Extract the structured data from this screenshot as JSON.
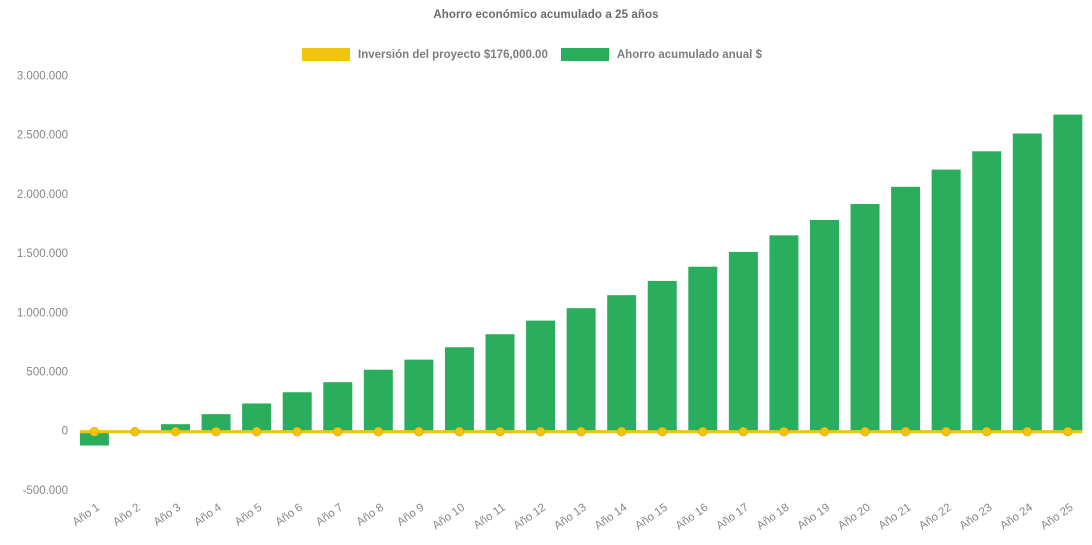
{
  "title": "Ahorro económico acumulado a 25 años",
  "legend": {
    "items": [
      {
        "label": "Inversión del proyecto $176,000.00",
        "series": "investment-line",
        "color": "#F1C40F"
      },
      {
        "label": "Ahorro acumulado anual $",
        "series": "savings-bars",
        "color": "#2BAD5E"
      }
    ]
  },
  "chart_data": {
    "type": "bar",
    "title": "Ahorro económico acumulado a 25 años",
    "categories": [
      "Año 1",
      "Año 2",
      "Año 3",
      "Año 4",
      "Año 5",
      "Año 6",
      "Año 7",
      "Año 8",
      "Año 9",
      "Año 10",
      "Año 11",
      "Año 12",
      "Año 13",
      "Año 14",
      "Año 15",
      "Año 16",
      "Año 17",
      "Año 18",
      "Año 19",
      "Año 20",
      "Año 21",
      "Año 22",
      "Año 23",
      "Año 24",
      "Año 25"
    ],
    "series": [
      {
        "name": "Ahorro acumulado anual $",
        "type": "bar",
        "color": "#2BAD5E",
        "values": [
          -125000,
          -15000,
          55000,
          140000,
          230000,
          325000,
          410000,
          515000,
          600000,
          705000,
          815000,
          930000,
          1035000,
          1145000,
          1265000,
          1385000,
          1510000,
          1650000,
          1780000,
          1915000,
          2060000,
          2205000,
          2360000,
          2510000,
          2670000
        ]
      },
      {
        "name": "Inversión del proyecto $176,000.00",
        "type": "line",
        "color": "#F1C40F",
        "marker": "circle",
        "values": [
          0,
          0,
          0,
          0,
          0,
          0,
          0,
          0,
          0,
          0,
          0,
          0,
          0,
          0,
          0,
          0,
          0,
          0,
          0,
          0,
          0,
          0,
          0,
          0,
          0
        ]
      }
    ],
    "y_axis": {
      "min": -500000,
      "max": 3000000,
      "step": 500000,
      "tick_labels": [
        "3.000.000",
        "2.500.000",
        "2.000.000",
        "1.500.000",
        "1.000.000",
        "500.000",
        "0",
        "-500.000"
      ]
    },
    "x_axis": {
      "label_rotation": -35
    },
    "grid": false,
    "legend_position": "top-center"
  },
  "colors": {
    "bar_green": "#2BAD5E",
    "line_yellow": "#F1C40F",
    "title_text": "#6B6B6B",
    "axis_text": "#878787",
    "background": "#FFFFFF"
  }
}
